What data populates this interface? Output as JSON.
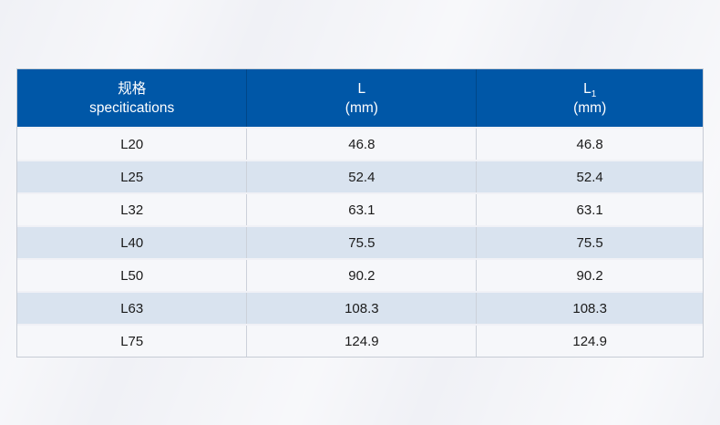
{
  "page": {
    "background_color": "#f0f1f6"
  },
  "table": {
    "colors": {
      "header_background": "#0057a7",
      "header_text": "#ffffff",
      "row_text": "#1b1b1b",
      "row_light": "#f6f7fa",
      "row_blue": "#d9e3ef",
      "border": "#c7ccd5"
    },
    "header": {
      "spec": {
        "line1": "规格",
        "line2": "specitications"
      },
      "l": {
        "line1": "L",
        "line2": "(mm)"
      },
      "l1": {
        "base": "L",
        "sub": "1",
        "line2": "(mm)"
      }
    },
    "rows": [
      {
        "spec": "L20",
        "l": "46.8",
        "l1": "46.8"
      },
      {
        "spec": "L25",
        "l": "52.4",
        "l1": "52.4"
      },
      {
        "spec": "L32",
        "l": "63.1",
        "l1": "63.1"
      },
      {
        "spec": "L40",
        "l": "75.5",
        "l1": "75.5"
      },
      {
        "spec": "L50",
        "l": "90.2",
        "l1": "90.2"
      },
      {
        "spec": "L63",
        "l": "108.3",
        "l1": "108.3"
      },
      {
        "spec": "L75",
        "l": "124.9",
        "l1": "124.9"
      }
    ]
  }
}
